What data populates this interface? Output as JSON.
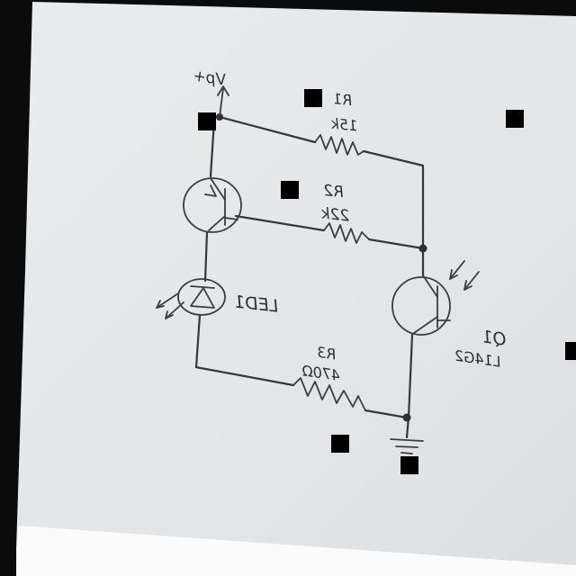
{
  "diagram": {
    "supply_label": "Vp+",
    "r1": {
      "name": "R1",
      "value": "15k"
    },
    "r2": {
      "name": "R2",
      "value": "22k"
    },
    "r3": {
      "name": "R3",
      "value": "470Ω"
    },
    "led": {
      "name": "LED1"
    },
    "q1": {
      "name": "Q1",
      "part": "L14G2"
    }
  },
  "colors": {
    "paper": "#e6e8ea",
    "ink": "#34373d",
    "background": "#0b0b0b",
    "redaction": "#000000"
  }
}
